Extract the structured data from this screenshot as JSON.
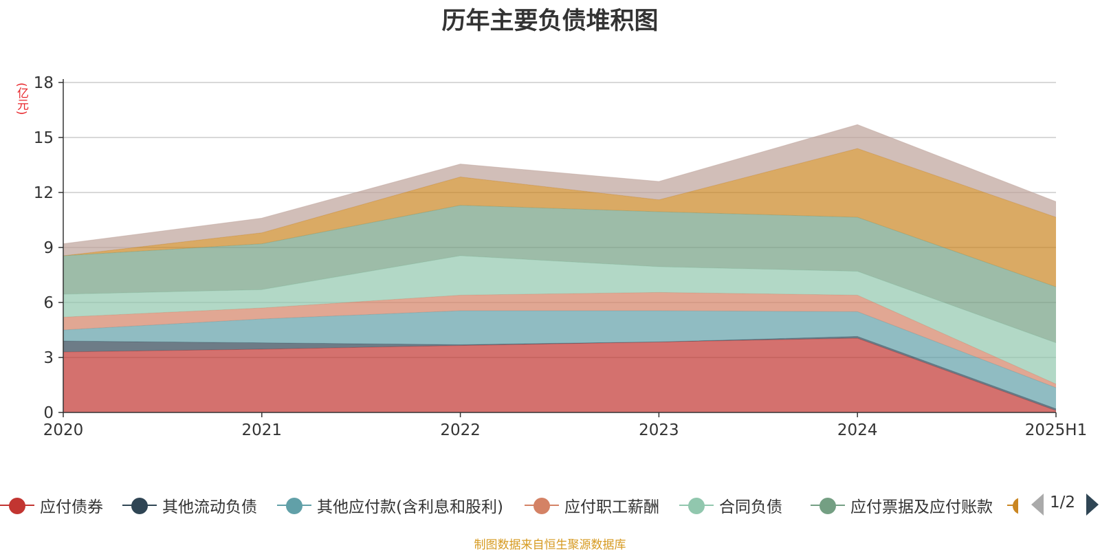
{
  "chart_data": {
    "type": "area",
    "stacked": true,
    "title": "历年主要负债堆积图",
    "ylabel": "(亿元)",
    "xlabel": "",
    "categories": [
      "2020",
      "2021",
      "2022",
      "2023",
      "2024",
      "2025H1"
    ],
    "ylim": [
      0,
      18
    ],
    "yticks": [
      0,
      3,
      6,
      9,
      12,
      15,
      18
    ],
    "grid": true,
    "series": [
      {
        "name": "应付债券",
        "color": "#c23531",
        "values": [
          3.3,
          3.45,
          3.65,
          3.85,
          4.05,
          0.1
        ]
      },
      {
        "name": "其他流动负债",
        "color": "#2f4554",
        "values": [
          0.6,
          0.35,
          0.05,
          0.0,
          0.1,
          0.1
        ]
      },
      {
        "name": "其他应付款(含利息和股利)",
        "color": "#61a0a8",
        "values": [
          0.6,
          1.3,
          1.85,
          1.7,
          1.35,
          1.15
        ]
      },
      {
        "name": "应付职工薪酬",
        "color": "#d48265",
        "values": [
          0.7,
          0.6,
          0.85,
          1.0,
          0.9,
          0.2
        ]
      },
      {
        "name": "合同负债",
        "color": "#91c7ae",
        "values": [
          1.25,
          1.0,
          2.15,
          1.4,
          1.3,
          2.25
        ]
      },
      {
        "name": "应付票据及应付账款",
        "color": "#749f83",
        "values": [
          2.1,
          2.5,
          2.75,
          3.0,
          2.95,
          3.05
        ]
      },
      {
        "name": "",
        "color": "#ca8622",
        "values": [
          0.0,
          0.6,
          1.55,
          0.65,
          3.75,
          3.8
        ]
      },
      {
        "name": "",
        "color": "#bda29a",
        "values": [
          0.65,
          0.8,
          0.7,
          1.0,
          1.3,
          0.85
        ]
      }
    ],
    "legend_position": "bottom"
  },
  "legend": {
    "items": [
      {
        "label": "应付债券",
        "color": "#c23531"
      },
      {
        "label": "其他流动负债",
        "color": "#2f4554"
      },
      {
        "label": "其他应付款(含利息和股利)",
        "color": "#61a0a8"
      },
      {
        "label": "应付职工薪酬",
        "color": "#d48265"
      },
      {
        "label": "合同负债",
        "color": "#91c7ae"
      },
      {
        "label": "应付票据及应付账款",
        "color": "#749f83"
      }
    ],
    "page_text": "1/2"
  },
  "source_note": "制图数据来自恒生聚源数据库"
}
